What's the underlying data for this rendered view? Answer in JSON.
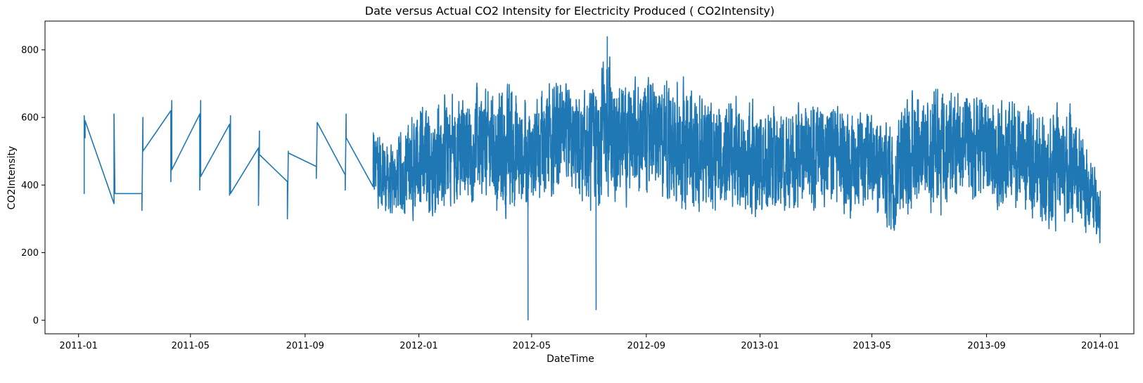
{
  "chart_data": {
    "type": "line",
    "title": "Date versus Actual CO2 Intensity for Electricity Produced ( CO2Intensity)",
    "xlabel": "DateTime",
    "ylabel": "CO2Intensity",
    "xlim": [
      "2010-11-26",
      "2014-02-06"
    ],
    "ylim": [
      -40,
      885
    ],
    "x_ticks": [
      "2011-01",
      "2011-05",
      "2011-09",
      "2012-01",
      "2012-05",
      "2012-09",
      "2013-01",
      "2013-05",
      "2013-09",
      "2014-01"
    ],
    "y_ticks": [
      0,
      200,
      400,
      600,
      800
    ],
    "grid": false,
    "colors": {
      "series": "#1f77b4",
      "axis": "#000000",
      "background": "#ffffff"
    },
    "series": [
      {
        "name": "CO2Intensity",
        "sparse_points": [
          [
            "2011-01-07",
            375
          ],
          [
            "2011-01-07",
            605
          ],
          [
            "2011-01-08",
            540
          ],
          [
            "2011-01-08",
            590
          ],
          [
            "2011-02-08",
            345
          ],
          [
            "2011-02-08",
            610
          ],
          [
            "2011-02-09",
            375
          ],
          [
            "2011-03-10",
            375
          ],
          [
            "2011-03-10",
            325
          ],
          [
            "2011-03-11",
            600
          ],
          [
            "2011-03-11",
            500
          ],
          [
            "2011-04-10",
            620
          ],
          [
            "2011-04-10",
            410
          ],
          [
            "2011-04-11",
            650
          ],
          [
            "2011-04-11",
            445
          ],
          [
            "2011-05-11",
            610
          ],
          [
            "2011-05-11",
            385
          ],
          [
            "2011-05-12",
            650
          ],
          [
            "2011-05-12",
            425
          ],
          [
            "2011-06-12",
            580
          ],
          [
            "2011-06-12",
            370
          ],
          [
            "2011-06-13",
            605
          ],
          [
            "2011-06-13",
            375
          ],
          [
            "2011-07-13",
            510
          ],
          [
            "2011-07-13",
            340
          ],
          [
            "2011-07-14",
            560
          ],
          [
            "2011-07-14",
            490
          ],
          [
            "2011-08-13",
            410
          ],
          [
            "2011-08-13",
            300
          ],
          [
            "2011-08-14",
            500
          ],
          [
            "2011-08-14",
            495
          ],
          [
            "2011-09-13",
            455
          ],
          [
            "2011-09-13",
            420
          ],
          [
            "2011-09-14",
            585
          ],
          [
            "2011-10-14",
            430
          ],
          [
            "2011-10-14",
            385
          ],
          [
            "2011-10-15",
            610
          ],
          [
            "2011-10-15",
            540
          ],
          [
            "2011-11-13",
            395
          ]
        ],
        "dense_range": [
          "2011-11-13",
          "2014-01-01"
        ],
        "dense_envelope": [
          [
            "2011-11-15",
            300,
            610
          ],
          [
            "2011-12-01",
            285,
            540
          ],
          [
            "2012-01-01",
            255,
            675
          ],
          [
            "2012-02-01",
            300,
            710
          ],
          [
            "2012-03-01",
            330,
            720
          ],
          [
            "2012-04-01",
            255,
            750
          ],
          [
            "2012-05-01",
            285,
            690
          ],
          [
            "2012-06-01",
            320,
            745
          ],
          [
            "2012-07-01",
            285,
            700
          ],
          [
            "2012-07-21",
            290,
            840
          ],
          [
            "2012-08-01",
            300,
            760
          ],
          [
            "2012-09-01",
            330,
            745
          ],
          [
            "2012-10-01",
            285,
            770
          ],
          [
            "2012-11-01",
            300,
            690
          ],
          [
            "2012-12-01",
            290,
            700
          ],
          [
            "2013-01-01",
            255,
            670
          ],
          [
            "2013-02-01",
            300,
            660
          ],
          [
            "2013-03-01",
            300,
            690
          ],
          [
            "2013-04-01",
            280,
            670
          ],
          [
            "2013-05-01",
            290,
            640
          ],
          [
            "2013-05-24",
            200,
            620
          ],
          [
            "2013-06-01",
            280,
            700
          ],
          [
            "2013-07-01",
            290,
            735
          ],
          [
            "2013-08-01",
            290,
            720
          ],
          [
            "2013-09-01",
            300,
            680
          ],
          [
            "2013-10-01",
            290,
            690
          ],
          [
            "2013-11-01",
            245,
            650
          ],
          [
            "2013-12-01",
            245,
            680
          ],
          [
            "2014-01-01",
            220,
            440
          ]
        ],
        "spikes": [
          [
            "2012-04-27",
            0
          ],
          [
            "2012-07-09",
            30
          ],
          [
            "2012-07-21",
            840
          ]
        ]
      }
    ]
  }
}
